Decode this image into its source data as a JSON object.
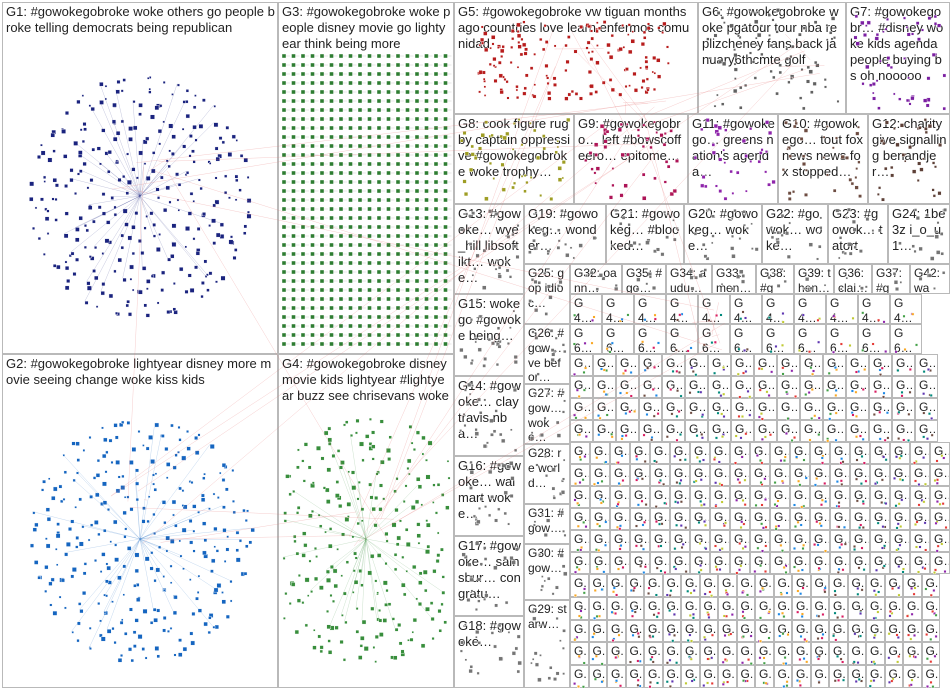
{
  "graph": {
    "title": "",
    "colors": {
      "G1": "#1a237e",
      "G2": "#1565c0",
      "G3": "#2e7d32",
      "G4": "#388e3c",
      "G5": "#b71c1c",
      "G6": "#616161",
      "G7": "#7b1fa2",
      "G8": "#9e9d24",
      "G9": "#ad1457",
      "G11": "#8e24aa",
      "G10": "#6d4c41",
      "G12": "#5d4037",
      "edge": "#e57373",
      "grid_edge": "#9e9e9e"
    },
    "groups": [
      {
        "id": "G1",
        "label": "G1: #gowokegobroke woke others go people broke telling democrats being republican"
      },
      {
        "id": "G2",
        "label": "G2: #gowokegobroke lightyear disney more movie seeing change woke kiss kids"
      },
      {
        "id": "G3",
        "label": "G3: #gowokegobroke woke people disney movie go lightyear think being more"
      },
      {
        "id": "G4",
        "label": "G4: #gowokegobroke disney movie kids lightyear #lightyear buzz see chrisevans woke"
      },
      {
        "id": "G5",
        "label": "G5: #gowokegobroke vw tiguan months ago countries love learn enfermos comunidad"
      },
      {
        "id": "G6",
        "label": "G6: #gowokegobroke woke pgatour tour nba replizcheney fans back january6thcmte golf"
      },
      {
        "id": "G7",
        "label": "G7: #gowokegobr… #disney woke kids agenda people buying bs oh nooooo"
      },
      {
        "id": "G8",
        "label": "G8: cook figure rugby captain oppressive #gowokegobroke woke trophy…"
      },
      {
        "id": "G9",
        "label": "G9: #gowokegobro… left #bowscoffeero… epitome…"
      },
      {
        "id": "G11",
        "label": "G11: #gowokego… greens nation's agenda…"
      },
      {
        "id": "G10",
        "label": "G10: #gowokego… tout foxnews news fox stopped…"
      },
      {
        "id": "G12",
        "label": "G12: charity give signalling benandjer…"
      },
      {
        "id": "G13",
        "label": "G13: #gowoke… wye_hill libsoftikt… woke…"
      },
      {
        "id": "G19",
        "label": "G19: #gowokeg… wonder…"
      },
      {
        "id": "G21",
        "label": "G21: #gowokeg… #blocked…"
      },
      {
        "id": "G20",
        "label": "G20: #gowokeg… woke…"
      },
      {
        "id": "G22",
        "label": "G22: #gowok… woke…"
      },
      {
        "id": "G23",
        "label": "G23: #gowok… tatort"
      },
      {
        "id": "G24",
        "label": "G24: 1be3z i_o_u1…"
      },
      {
        "id": "G25",
        "label": "G25: gop idioc…"
      },
      {
        "id": "G32",
        "label": "G32: oann…"
      },
      {
        "id": "G35",
        "label": "G35: #go…"
      },
      {
        "id": "G34",
        "label": "G34: audu…"
      },
      {
        "id": "G33",
        "label": "G33: men…"
      },
      {
        "id": "G38",
        "label": "G38: #go…"
      },
      {
        "id": "G39",
        "label": "G39: then…"
      },
      {
        "id": "G36",
        "label": "G36: clai…"
      },
      {
        "id": "G37",
        "label": "G37: #go…"
      },
      {
        "id": "G42",
        "label": "G42: was…"
      },
      {
        "id": "G15",
        "label": "G15: woke go #gowoke being…"
      },
      {
        "id": "G26",
        "label": "G26: #gow… ve befor…"
      },
      {
        "id": "G14",
        "label": "G14: #gowoke… claytravis nba…"
      },
      {
        "id": "G27",
        "label": "G27: #gow… woke…"
      },
      {
        "id": "G16",
        "label": "G16: #gowoke… walmart woke…"
      },
      {
        "id": "G28",
        "label": "G28: re world…"
      },
      {
        "id": "G17",
        "label": "G17: #gowoke… sainsbur… congratu…"
      },
      {
        "id": "G31",
        "label": "G31: #gow…"
      },
      {
        "id": "G30",
        "label": "G30: #gow…"
      },
      {
        "id": "G18",
        "label": "G18: #gowoke…"
      },
      {
        "id": "G29",
        "label": "G29: starw…"
      },
      {
        "id": "G4x",
        "label": "G4… #g…"
      },
      {
        "id": "G5x",
        "label": "G5…"
      },
      {
        "id": "G6x",
        "label": "G6…"
      },
      {
        "id": "Gs",
        "label": "G…"
      },
      {
        "id": "Gg",
        "label": "G."
      }
    ]
  }
}
